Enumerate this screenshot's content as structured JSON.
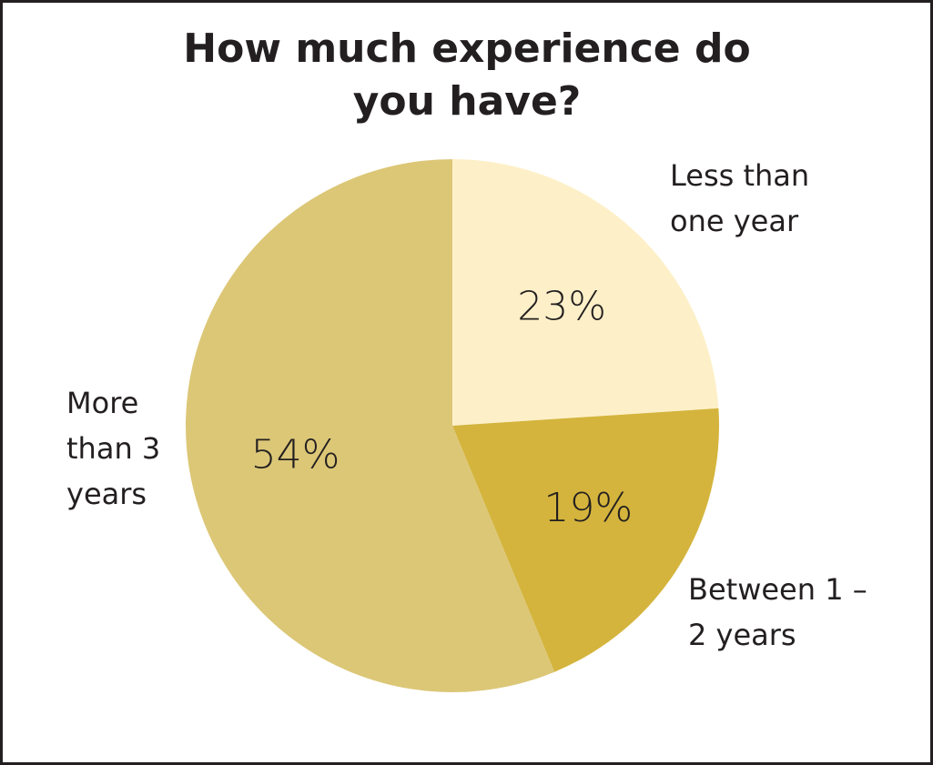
{
  "chart_data": {
    "type": "pie",
    "title": "How much experience do you have?",
    "categories": [
      "Less than one year",
      "Between 1 – 2 years",
      "More than 3 years"
    ],
    "values": [
      23,
      19,
      54
    ],
    "value_labels": [
      "23%",
      "19%",
      "54%"
    ],
    "colors": [
      "#fdf0c8",
      "#d4b43c",
      "#dcc777"
    ]
  }
}
